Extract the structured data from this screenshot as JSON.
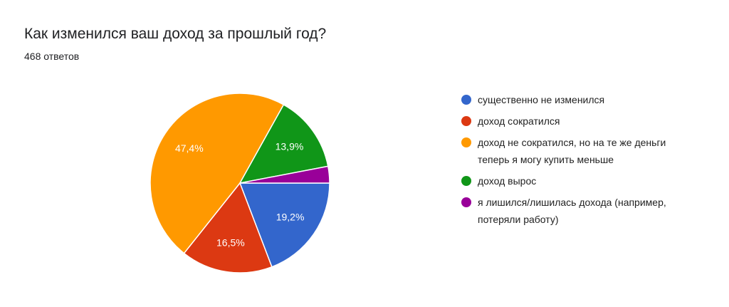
{
  "chart_data": {
    "type": "pie",
    "title": "Как изменился ваш доход за прошлый год?",
    "subtitle": "468 ответов",
    "categories": [
      "существенно не изменился",
      "доход сократился",
      "доход не сократился, но на те же деньги теперь я могу купить меньше",
      "доход вырос",
      "я лишился/лишилась дохода (например, потеряли работу)"
    ],
    "values": [
      19.2,
      16.5,
      47.4,
      13.9,
      3.0
    ],
    "value_labels": [
      "19,2%",
      "16,5%",
      "47,4%",
      "13,9%",
      null
    ],
    "colors": [
      "#3366cc",
      "#dc3912",
      "#ff9900",
      "#109618",
      "#990099"
    ],
    "legend": "right"
  }
}
